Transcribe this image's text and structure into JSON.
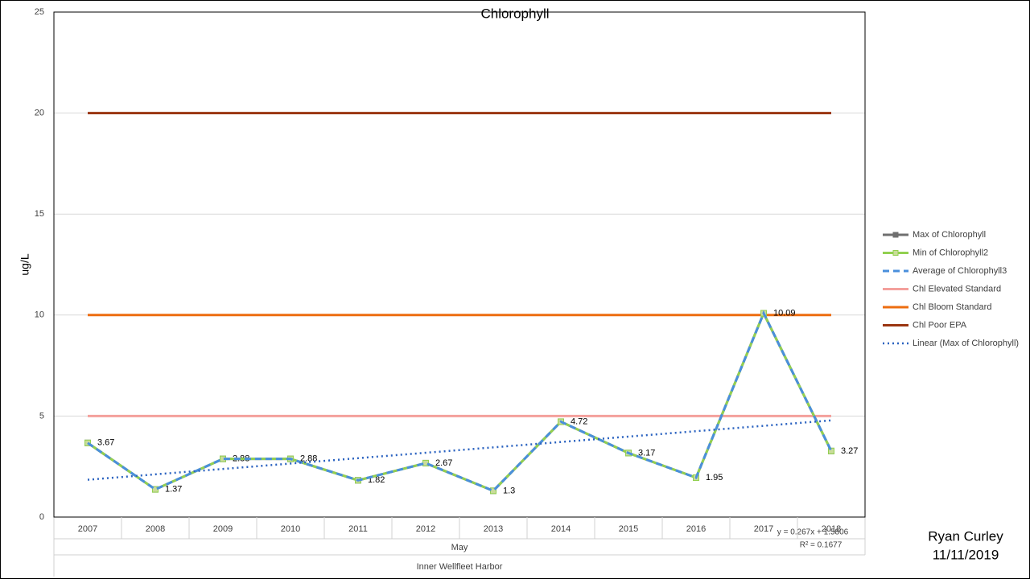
{
  "chart_data": {
    "type": "line",
    "title": "Chlorophyll",
    "y_label": "ug/L",
    "categories": [
      "2007",
      "2008",
      "2009",
      "2010",
      "2011",
      "2012",
      "2013",
      "2014",
      "2015",
      "2016",
      "2017",
      "2018"
    ],
    "x_group": "May",
    "x_group2": "Inner Wellfleet Harbor",
    "ylim": [
      0,
      25
    ],
    "yticks": [
      0,
      5,
      10,
      15,
      20,
      25
    ],
    "grid": true,
    "legend": "right",
    "series": [
      {
        "name": "Max of Chlorophyll",
        "color": "#6f6f6f",
        "style": "solid",
        "marker": true,
        "data_labels": true,
        "values": [
          3.67,
          1.37,
          2.88,
          2.88,
          1.82,
          2.67,
          1.3,
          4.72,
          3.17,
          1.95,
          10.09,
          3.27
        ]
      },
      {
        "name": "Min of Chlorophyll2",
        "color": "#92d050",
        "style": "solid",
        "marker": true,
        "values": [
          3.67,
          1.37,
          2.88,
          2.88,
          1.82,
          2.67,
          1.3,
          4.72,
          3.17,
          1.95,
          10.09,
          3.27
        ]
      },
      {
        "name": "Average of Chlorophyll3",
        "color": "#4a8fdc",
        "style": "dash",
        "values": [
          3.67,
          1.37,
          2.88,
          2.88,
          1.82,
          2.67,
          1.3,
          4.72,
          3.17,
          1.95,
          10.09,
          3.27
        ]
      },
      {
        "name": "Chl Elevated Standard",
        "color": "#f4a09c",
        "style": "solid",
        "values": [
          5,
          5,
          5,
          5,
          5,
          5,
          5,
          5,
          5,
          5,
          5,
          5
        ]
      },
      {
        "name": "Chl Bloom Standard",
        "color": "#ed6d10",
        "style": "solid",
        "values": [
          10,
          10,
          10,
          10,
          10,
          10,
          10,
          10,
          10,
          10,
          10,
          10
        ]
      },
      {
        "name": "Chl Poor EPA",
        "color": "#9a3510",
        "style": "solid",
        "values": [
          20,
          20,
          20,
          20,
          20,
          20,
          20,
          20,
          20,
          20,
          20,
          20
        ]
      }
    ],
    "trendline": {
      "name": "Linear (Max of Chlorophyll)",
      "color": "#2a62c0",
      "slope": 0.267,
      "intercept": 1.5806,
      "equation": "y = 0.267x + 1.5806",
      "r2": "R² = 0.1677"
    }
  },
  "author": "Ryan Curley",
  "date": "11/11/2019"
}
